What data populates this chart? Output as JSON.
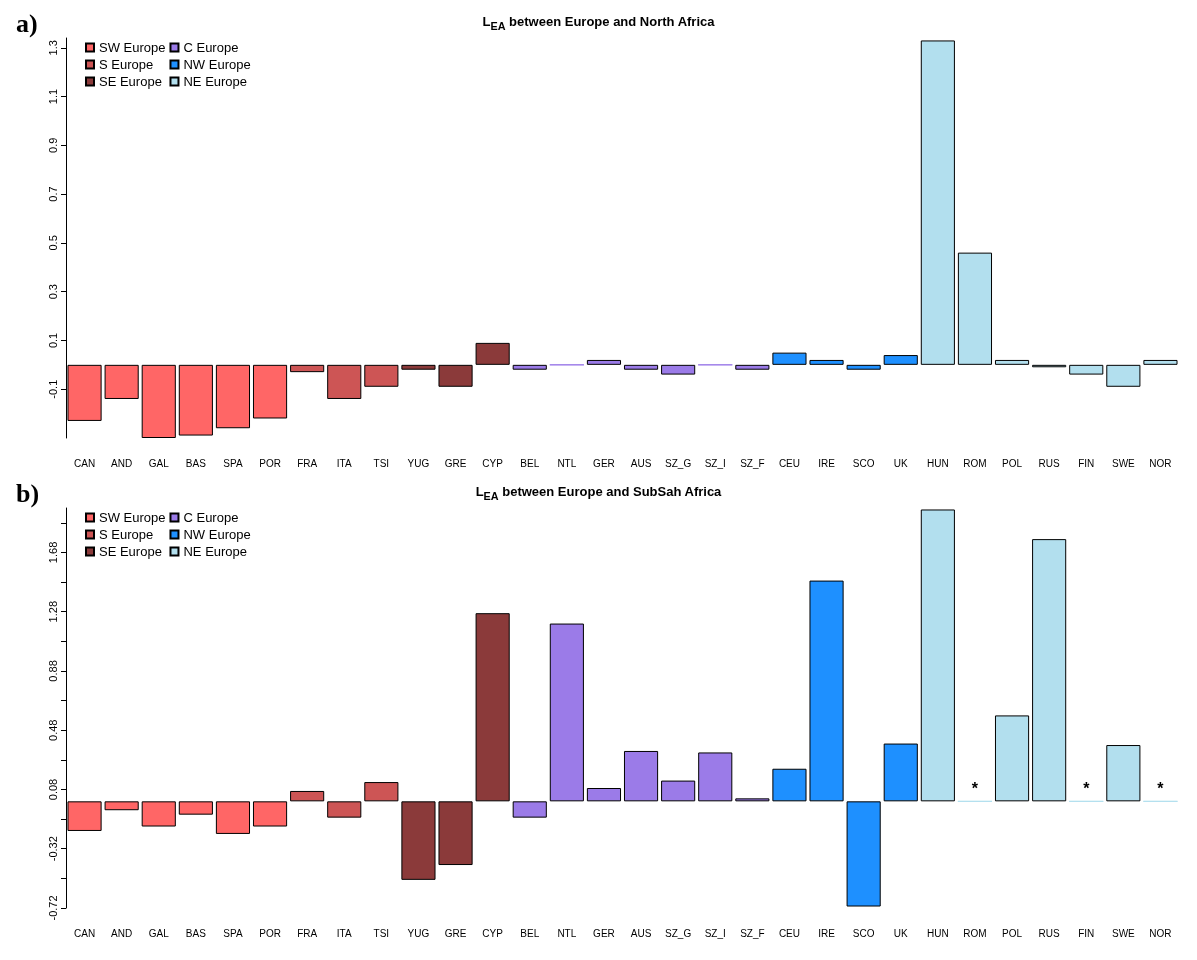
{
  "chart_data": [
    {
      "type": "bar",
      "title": "L$_{EA}$ between Europe and North Africa",
      "annotations": [
        "a)"
      ],
      "categories": [
        "CAN",
        "AND",
        "GAL",
        "BAS",
        "SPA",
        "POR",
        "FRA",
        "ITA",
        "TSI",
        "YUG",
        "GRE",
        "CYP",
        "BEL",
        "NTL",
        "GER",
        "AUS",
        "SZ_G",
        "SZ_I",
        "SZ_F",
        "CEU",
        "IRE",
        "SCO",
        "UK",
        "HUN",
        "ROM",
        "POL",
        "RUS",
        "FIN",
        "SWE",
        "NOR"
      ],
      "series": [
        {
          "name": "SW Europe",
          "color": "#ff6666",
          "values": [
            -0.23,
            -0.14,
            -0.3,
            -0.29,
            -0.26,
            -0.22,
            null,
            null,
            null,
            null,
            null,
            null,
            null,
            null,
            null,
            null,
            null,
            null,
            null,
            null,
            null,
            null,
            null,
            null,
            null,
            null,
            null,
            null,
            null,
            null
          ]
        },
        {
          "name": "S Europe",
          "color": "#cd5555",
          "values": [
            null,
            null,
            null,
            null,
            null,
            null,
            -0.03,
            -0.14,
            -0.09,
            null,
            null,
            null,
            null,
            null,
            null,
            null,
            null,
            null,
            null,
            null,
            null,
            null,
            null,
            null,
            null,
            null,
            null,
            null,
            null,
            null
          ]
        },
        {
          "name": "SE Europe",
          "color": "#8b3a3a",
          "values": [
            null,
            null,
            null,
            null,
            null,
            null,
            null,
            null,
            null,
            -0.02,
            -0.09,
            0.09,
            null,
            null,
            null,
            null,
            null,
            null,
            null,
            null,
            null,
            null,
            null,
            null,
            null,
            null,
            null,
            null,
            null,
            null
          ]
        },
        {
          "name": "C Europe",
          "color": "#9b7be8",
          "values": [
            null,
            null,
            null,
            null,
            null,
            null,
            null,
            null,
            null,
            null,
            null,
            null,
            -0.02,
            0.0,
            0.02,
            -0.02,
            -0.04,
            0.0,
            -0.02,
            null,
            null,
            null,
            null,
            null,
            null,
            null,
            null,
            null,
            null,
            null
          ]
        },
        {
          "name": "NW Europe",
          "color": "#1e90ff",
          "values": [
            null,
            null,
            null,
            null,
            null,
            null,
            null,
            null,
            null,
            null,
            null,
            null,
            null,
            null,
            null,
            null,
            null,
            null,
            null,
            0.05,
            0.02,
            -0.02,
            0.04,
            null,
            null,
            null,
            null,
            null,
            null,
            null
          ]
        },
        {
          "name": "NE Europe",
          "color": "#b2dfee",
          "values": [
            null,
            null,
            null,
            null,
            null,
            null,
            null,
            null,
            null,
            null,
            null,
            null,
            null,
            null,
            null,
            null,
            null,
            null,
            null,
            null,
            null,
            null,
            null,
            1.33,
            0.46,
            0.02,
            -0.01,
            -0.04,
            -0.09,
            0.02
          ]
        }
      ],
      "ylim": [
        -0.3,
        1.34
      ],
      "yticks": [
        -0.1,
        0.1,
        0.3,
        0.5,
        0.7,
        0.9,
        1.1,
        1.3
      ],
      "grid": false,
      "legend": "top left"
    },
    {
      "type": "bar",
      "title": "L$_{EA}$ between Europe and SubSah Africa",
      "annotations": [
        "b)",
        {
          "text": "*",
          "x": "ROM",
          "y": 0
        },
        {
          "text": "*",
          "x": "FIN",
          "y": 0
        },
        {
          "text": "*",
          "x": "NOR",
          "y": 0
        }
      ],
      "categories": [
        "CAN",
        "AND",
        "GAL",
        "BAS",
        "SPA",
        "POR",
        "FRA",
        "ITA",
        "TSI",
        "YUG",
        "GRE",
        "CYP",
        "BEL",
        "NTL",
        "GER",
        "AUS",
        "SZ_G",
        "SZ_I",
        "SZ_F",
        "CEU",
        "IRE",
        "SCO",
        "UK",
        "HUN",
        "ROM",
        "POL",
        "RUS",
        "FIN",
        "SWE",
        "NOR"
      ],
      "series": [
        {
          "name": "SW Europe",
          "color": "#ff6666",
          "values": [
            -0.2,
            -0.06,
            -0.17,
            -0.09,
            -0.22,
            -0.17,
            null,
            null,
            null,
            null,
            null,
            null,
            null,
            null,
            null,
            null,
            null,
            null,
            null,
            null,
            null,
            null,
            null,
            null,
            null,
            null,
            null,
            null,
            null,
            null
          ]
        },
        {
          "name": "S Europe",
          "color": "#cd5555",
          "values": [
            null,
            null,
            null,
            null,
            null,
            null,
            0.07,
            -0.11,
            0.13,
            null,
            null,
            null,
            null,
            null,
            null,
            null,
            null,
            null,
            null,
            null,
            null,
            null,
            null,
            null,
            null,
            null,
            null,
            null,
            null,
            null
          ]
        },
        {
          "name": "SE Europe",
          "color": "#8b3a3a",
          "values": [
            null,
            null,
            null,
            null,
            null,
            null,
            null,
            null,
            null,
            -0.53,
            -0.43,
            1.27,
            null,
            null,
            null,
            null,
            null,
            null,
            null,
            null,
            null,
            null,
            null,
            null,
            null,
            null,
            null,
            null,
            null,
            null
          ]
        },
        {
          "name": "C Europe",
          "color": "#9b7be8",
          "values": [
            null,
            null,
            null,
            null,
            null,
            null,
            null,
            null,
            null,
            null,
            null,
            null,
            -0.11,
            1.2,
            0.09,
            0.34,
            0.14,
            0.33,
            0.02,
            null,
            null,
            null,
            null,
            null,
            null,
            null,
            null,
            null,
            null,
            null
          ]
        },
        {
          "name": "NW Europe",
          "color": "#1e90ff",
          "values": [
            null,
            null,
            null,
            null,
            null,
            null,
            null,
            null,
            null,
            null,
            null,
            null,
            null,
            null,
            null,
            null,
            null,
            null,
            null,
            0.22,
            1.49,
            -0.71,
            0.39,
            null,
            null,
            null,
            null,
            null,
            null,
            null
          ]
        },
        {
          "name": "NE Europe",
          "color": "#b2dfee",
          "values": [
            null,
            null,
            null,
            null,
            null,
            null,
            null,
            null,
            null,
            null,
            null,
            null,
            null,
            null,
            null,
            null,
            null,
            null,
            null,
            null,
            null,
            null,
            null,
            1.97,
            0,
            0.58,
            1.77,
            0,
            0.38,
            0
          ]
        }
      ],
      "ylim": [
        -0.72,
        1.98
      ],
      "yticks": [
        -0.72,
        {
          "value": -0.52,
          "label": null
        },
        -0.32,
        {
          "value": -0.12,
          "label": null
        },
        0.08,
        {
          "value": 0.28,
          "label": null
        },
        0.48,
        {
          "value": 0.68,
          "label": null
        },
        0.88,
        {
          "value": 1.08,
          "label": null
        },
        1.28,
        {
          "value": 1.48,
          "label": null
        },
        1.68,
        {
          "value": 1.88,
          "label": null
        }
      ],
      "grid": false,
      "legend": "top left"
    }
  ]
}
